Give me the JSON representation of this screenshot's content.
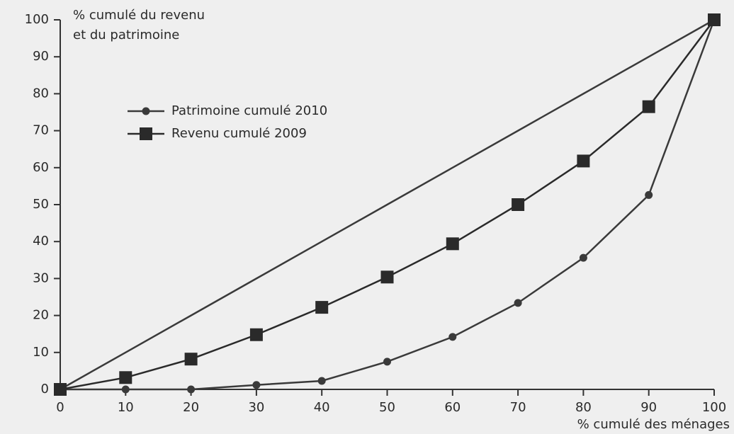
{
  "chart_data": {
    "type": "line",
    "ylabel": [
      "% cumulé du revenu",
      "et du patrimoine"
    ],
    "xlabel": "% cumulé des ménages",
    "x": [
      0,
      10,
      20,
      30,
      40,
      50,
      60,
      70,
      80,
      90,
      100
    ],
    "series": [
      {
        "values": [
          0,
          10,
          20,
          30,
          40,
          50,
          60,
          70,
          80,
          90,
          100
        ],
        "color": "#3a3a3a",
        "marker": "none"
      },
      {
        "name": "Patrimoine cumulé 2010",
        "color": "#3a3a3a",
        "marker": "circle",
        "values": [
          0,
          0,
          0,
          1.2,
          2.3,
          7.5,
          14.2,
          23.4,
          35.6,
          52.6,
          100
        ]
      },
      {
        "name": "Revenu cumulé 2009",
        "color": "#2a2a2a",
        "marker": "square",
        "values": [
          0,
          3.2,
          8.2,
          14.8,
          22.2,
          30.4,
          39.4,
          50,
          61.8,
          76.5,
          100
        ]
      }
    ],
    "xlim": [
      0,
      100
    ],
    "ylim": [
      0,
      100
    ],
    "xticks": [
      0,
      10,
      20,
      30,
      40,
      50,
      60,
      70,
      80,
      90,
      100
    ],
    "yticks": [
      0,
      10,
      20,
      30,
      40,
      50,
      60,
      70,
      80,
      90,
      100
    ],
    "grid": false,
    "legend": "upper-left"
  }
}
